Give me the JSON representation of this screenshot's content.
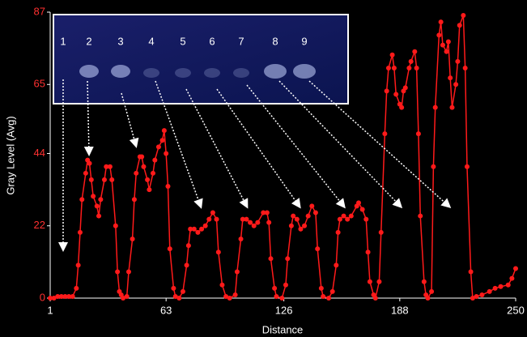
{
  "chart_data": {
    "type": "line",
    "x_label": "Distance",
    "y_label": "Gray Level (Avg)",
    "xlim": [
      1,
      250
    ],
    "xticks": [
      1,
      63,
      126,
      188,
      250
    ],
    "ylim": [
      0,
      87
    ],
    "yticks": [
      0,
      22,
      44,
      65,
      87
    ],
    "color": "#ff1a1a",
    "lane_labels": [
      "1",
      "2",
      "3",
      "4",
      "5",
      "6",
      "7",
      "8",
      "9"
    ],
    "x": [
      1,
      3,
      5,
      7,
      9,
      11,
      13,
      15,
      16,
      17,
      18,
      20,
      21,
      22,
      23,
      24,
      26,
      27,
      28,
      30,
      31,
      33,
      34,
      36,
      37,
      38,
      39,
      40,
      42,
      43,
      45,
      46,
      47,
      49,
      50,
      51,
      53,
      54,
      56,
      57,
      59,
      61,
      62,
      63,
      64,
      65,
      67,
      68,
      70,
      72,
      74,
      75,
      76,
      78,
      80,
      82,
      84,
      86,
      88,
      90,
      91,
      93,
      95,
      97,
      100,
      101,
      103,
      104,
      106,
      108,
      110,
      112,
      115,
      117,
      118,
      119,
      121,
      122,
      125,
      127,
      128,
      130,
      131,
      133,
      135,
      137,
      139,
      141,
      143,
      144,
      146,
      147,
      150,
      152,
      154,
      155,
      156,
      158,
      160,
      162,
      165,
      166,
      168,
      170,
      171,
      172,
      174,
      175,
      177,
      178,
      180,
      181,
      182,
      184,
      185,
      186,
      188,
      189,
      190,
      191,
      193,
      194,
      196,
      197,
      198,
      199,
      201,
      202,
      203,
      205,
      206,
      207,
      209,
      210,
      211,
      213,
      214,
      215,
      216,
      218,
      219,
      220,
      222,
      223,
      224,
      226,
      227,
      229,
      232,
      236,
      239,
      242,
      246,
      248,
      250
    ],
    "values": [
      0,
      0,
      0.5,
      0.5,
      0.5,
      0.5,
      0.5,
      3,
      10,
      20,
      30,
      38,
      42,
      41,
      36,
      31,
      28,
      25,
      30,
      36,
      40,
      40,
      36,
      22,
      8,
      2,
      1,
      0,
      0.5,
      8,
      18,
      30,
      38,
      43,
      43,
      40,
      36,
      33,
      38,
      42,
      46,
      48,
      51,
      44,
      34,
      15,
      3,
      0.5,
      0,
      2,
      10,
      16,
      21,
      21,
      20,
      21,
      22,
      24,
      26,
      24,
      14,
      4,
      0.5,
      0,
      1,
      8,
      18,
      24,
      24,
      23,
      22,
      23,
      26,
      26,
      23,
      12,
      3,
      0.5,
      0,
      4,
      12,
      22,
      25,
      24,
      21,
      22,
      25,
      28,
      26,
      15,
      3,
      0.5,
      0,
      2,
      10,
      20,
      24,
      25,
      24,
      25,
      28,
      29,
      27,
      24,
      14,
      5,
      1,
      0,
      5,
      20,
      50,
      63,
      70,
      74,
      70,
      62,
      59,
      58,
      63,
      64,
      70,
      72,
      75,
      70,
      50,
      25,
      5,
      1,
      0,
      2,
      40,
      58,
      80,
      84,
      77,
      75,
      78,
      67,
      58,
      65,
      72,
      83,
      86,
      70,
      40,
      8,
      0,
      0.5,
      1,
      2,
      3,
      3.5,
      4,
      6,
      9
    ]
  }
}
